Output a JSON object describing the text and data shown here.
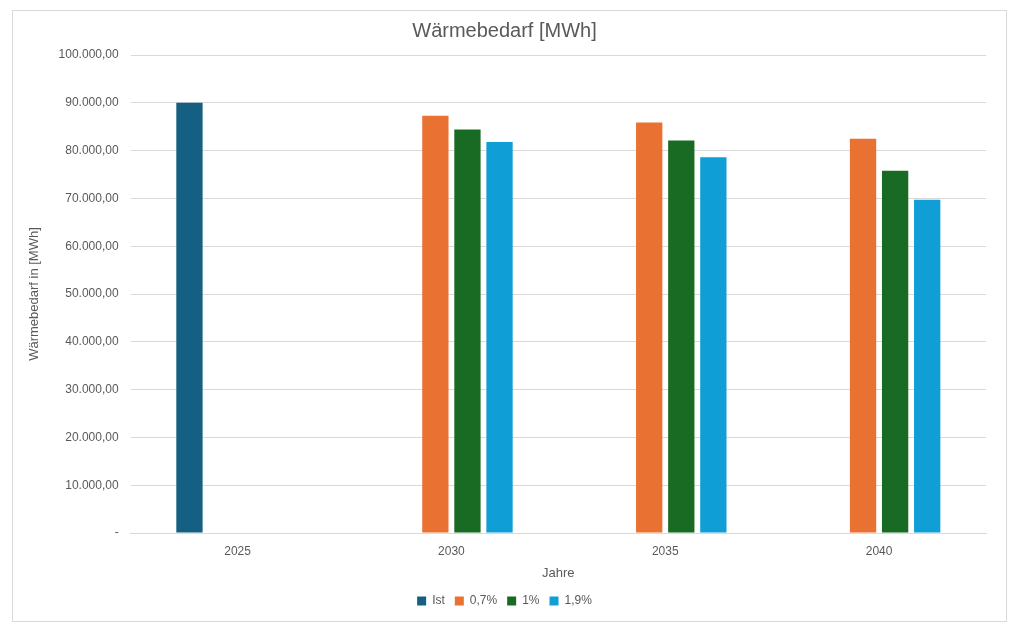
{
  "chart_data": {
    "type": "bar",
    "title": "Wärmebedarf [MWh]",
    "xlabel": "Jahre",
    "ylabel": "Wärmebedarf in [MWh]",
    "categories": [
      "2025",
      "2030",
      "2035",
      "2040"
    ],
    "series": [
      {
        "name": "Ist",
        "color": "#156082",
        "values": [
          90000,
          null,
          null,
          null
        ]
      },
      {
        "name": "0,7%",
        "color": "#e97132",
        "values": [
          null,
          87300,
          85900,
          82500
        ]
      },
      {
        "name": "1%",
        "color": "#196b24",
        "values": [
          null,
          84400,
          82100,
          75800
        ]
      },
      {
        "name": "1,9%",
        "color": "#0f9ed5",
        "values": [
          null,
          81800,
          78600,
          69700
        ]
      }
    ],
    "ylim": [
      0,
      100000
    ],
    "yticks": [
      {
        "value": 0,
        "label": "-"
      },
      {
        "value": 10000,
        "label": "10.000,00"
      },
      {
        "value": 20000,
        "label": "20.000,00"
      },
      {
        "value": 30000,
        "label": "30.000,00"
      },
      {
        "value": 40000,
        "label": "40.000,00"
      },
      {
        "value": 50000,
        "label": "50.000,00"
      },
      {
        "value": 60000,
        "label": "60.000,00"
      },
      {
        "value": 70000,
        "label": "70.000,00"
      },
      {
        "value": 80000,
        "label": "80.000,00"
      },
      {
        "value": 90000,
        "label": "90.000,00"
      },
      {
        "value": 100000,
        "label": "100.000,00"
      }
    ],
    "grid": "y",
    "legend": "bottom"
  }
}
